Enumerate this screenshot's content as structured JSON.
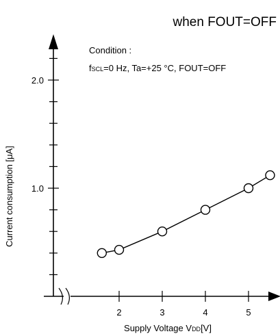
{
  "header": {
    "title": "when FOUT=OFF"
  },
  "condition": {
    "line1": "Condition :",
    "line2_f": "f",
    "line2_sub": "SCL",
    "line2_rest": "=0 Hz, Ta=+25 °C, FOUT=OFF"
  },
  "axis": {
    "ylabel": "Current consumption [μA]",
    "xlabel_main": "Supply Voltage V",
    "xlabel_sub": "DD",
    "xlabel_tail": "[V]",
    "xtick_labels": [
      "2",
      "3",
      "4",
      "5"
    ],
    "ytick_labels": [
      "1.0",
      "2.0"
    ]
  },
  "chart_data": {
    "type": "line",
    "title": "when FOUT=OFF",
    "xlabel": "Supply Voltage VDD[V]",
    "ylabel": "Current consumption [μA]",
    "x": [
      1.6,
      2.0,
      3.0,
      4.0,
      5.0,
      5.5
    ],
    "series": [
      {
        "values": [
          0.4,
          0.43,
          0.6,
          0.8,
          1.0,
          1.12
        ]
      }
    ],
    "xlim": [
      1.3,
      5.7
    ],
    "ylim": [
      0.0,
      2.35
    ],
    "x_axis_break": true,
    "grid": false,
    "line_color": "#000000",
    "marker": "open-circle"
  }
}
